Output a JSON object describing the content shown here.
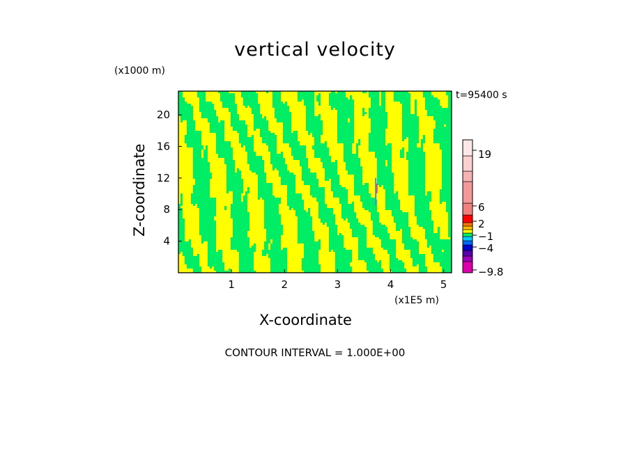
{
  "chart_data": {
    "type": "heatmap",
    "title": "vertical velocity",
    "xlabel": "X-coordinate",
    "ylabel": "Z-coordinate",
    "x_unit": "(x1E5 m)",
    "z_unit": "(x1000 m)",
    "time_label": "t=95400 s",
    "footer": "CONTOUR INTERVAL = 1.000E+00",
    "xlim": [
      0,
      5.15
    ],
    "ylim": [
      0,
      23
    ],
    "xticks": [
      1,
      2,
      3,
      4,
      5
    ],
    "yticks": [
      4,
      8,
      12,
      16,
      20
    ],
    "grid": false,
    "field_colors": {
      "positive": "#ffff00",
      "negative": "#00ee66"
    },
    "anomaly": {
      "x": 3.72,
      "z_range": [
        8.5,
        12
      ]
    },
    "colorbar": {
      "levels": [
        {
          "color": "#dd00aa"
        },
        {
          "color": "#9900bb"
        },
        {
          "color": "#5500aa"
        },
        {
          "color": "#0000cc"
        },
        {
          "color": "#0066ff"
        },
        {
          "color": "#00ccff"
        },
        {
          "color": "#00ee66"
        },
        {
          "color": "#ffff00"
        },
        {
          "color": "#ffbb00"
        },
        {
          "color": "#ff7700"
        },
        {
          "color": "#ff0000"
        },
        {
          "color": "#f08080"
        },
        {
          "color": "#f29a9a"
        },
        {
          "color": "#f5b3b3"
        },
        {
          "color": "#fad0d0"
        },
        {
          "color": "#fde8e8"
        }
      ],
      "labels": [
        "19",
        "6",
        "2",
        "−1",
        "−4",
        "−9.8"
      ]
    }
  }
}
